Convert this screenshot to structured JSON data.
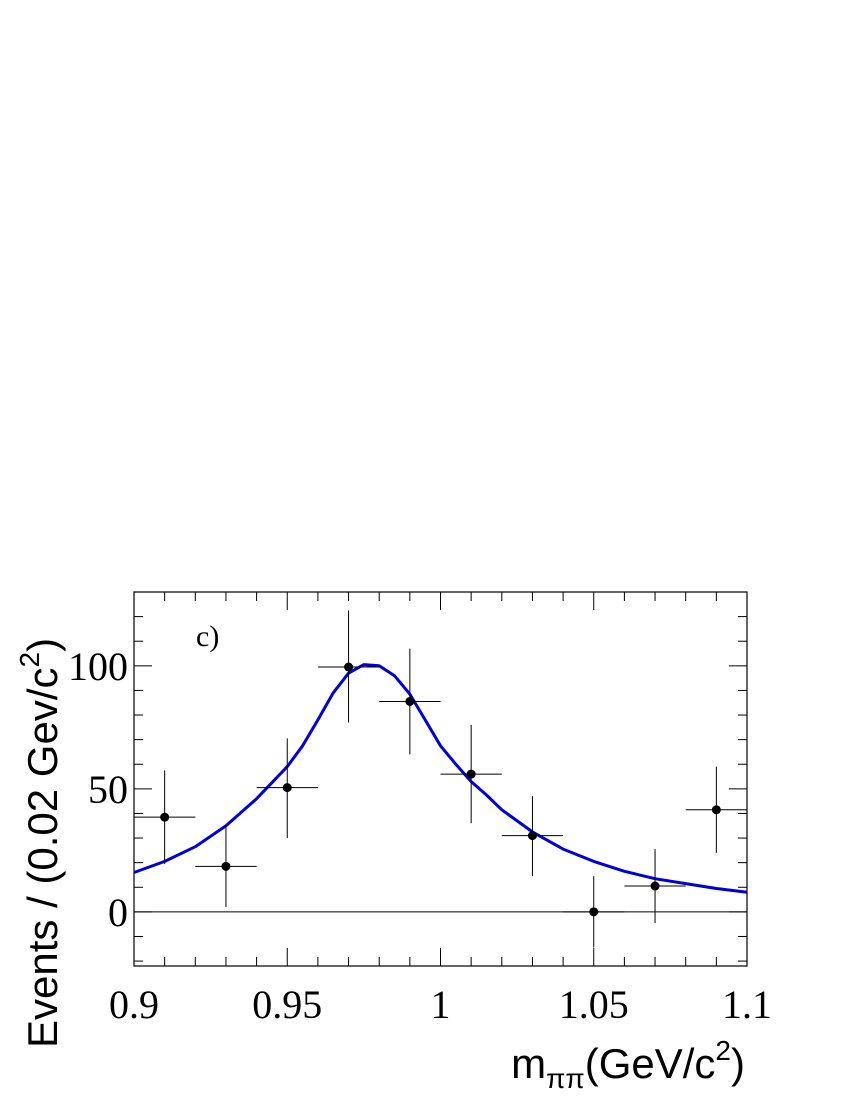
{
  "chart_data": {
    "type": "scatter",
    "panel_label": "c)",
    "xlabel": {
      "main": "m",
      "sub": "ππ",
      "tail": "(GeV/c",
      "sup": "2",
      "close": ")"
    },
    "ylabel": {
      "main": "Events / (0.02 Gev/c",
      "sup": "2",
      "close": ")"
    },
    "xlim": [
      0.9,
      1.1
    ],
    "ylim": [
      -22,
      130
    ],
    "x_ticks": [
      {
        "value": 0.9,
        "label": "0.9"
      },
      {
        "value": 0.95,
        "label": "0.95"
      },
      {
        "value": 1.0,
        "label": "1"
      },
      {
        "value": 1.05,
        "label": "1.05"
      },
      {
        "value": 1.1,
        "label": "1.1"
      }
    ],
    "y_ticks": [
      {
        "value": 0,
        "label": "0"
      },
      {
        "value": 50,
        "label": "50"
      },
      {
        "value": 100,
        "label": "100"
      }
    ],
    "zero_line": true,
    "series": [
      {
        "kind": "data",
        "color": "#000000",
        "x": [
          0.91,
          0.93,
          0.95,
          0.97,
          0.99,
          1.01,
          1.03,
          1.05,
          1.07,
          1.09
        ],
        "x_err": 0.01,
        "y": [
          38.5,
          18.5,
          50.5,
          99.5,
          85.5,
          56.0,
          31.0,
          0.0,
          10.5,
          41.5
        ],
        "y_err_low": [
          19.0,
          16.5,
          20.5,
          22.5,
          21.5,
          20.0,
          16.5,
          14.5,
          15.0,
          17.5
        ],
        "y_err_high": [
          19.0,
          16.5,
          20.0,
          23.0,
          21.5,
          20.0,
          16.0,
          14.5,
          15.0,
          17.5
        ]
      },
      {
        "kind": "fit",
        "color": "#0000dd",
        "x": [
          0.9,
          0.91,
          0.92,
          0.93,
          0.94,
          0.95,
          0.955,
          0.96,
          0.965,
          0.97,
          0.975,
          0.98,
          0.985,
          0.99,
          0.995,
          1.0,
          1.005,
          1.01,
          1.015,
          1.02,
          1.03,
          1.04,
          1.05,
          1.06,
          1.07,
          1.08,
          1.09,
          1.1
        ],
        "y": [
          16.0,
          20.5,
          26.5,
          35.0,
          46.0,
          59.0,
          67.5,
          78.0,
          89.0,
          97.0,
          100.5,
          100.0,
          96.0,
          88.5,
          78.0,
          67.5,
          60.0,
          53.0,
          47.5,
          41.5,
          32.5,
          25.5,
          20.5,
          16.5,
          13.5,
          11.5,
          9.5,
          8.0
        ]
      }
    ]
  }
}
